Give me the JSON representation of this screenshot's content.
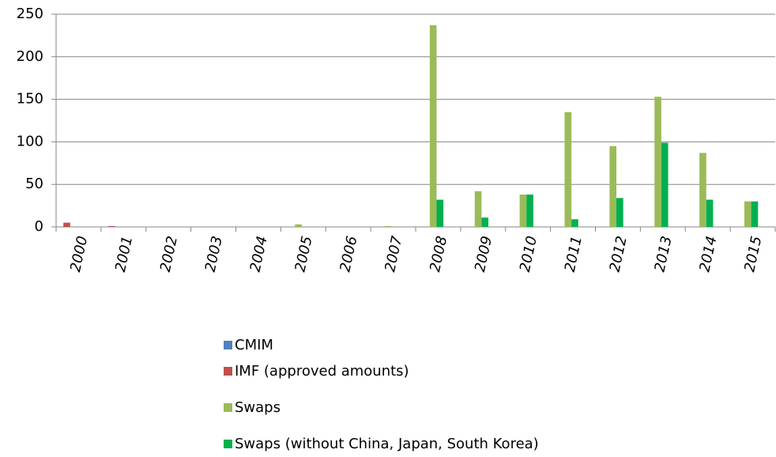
{
  "chart_data": {
    "type": "bar",
    "categories": [
      "2000",
      "2001",
      "2002",
      "2003",
      "2004",
      "2005",
      "2006",
      "2007",
      "2008",
      "2009",
      "2010",
      "2011",
      "2012",
      "2013",
      "2014",
      "2015"
    ],
    "series": [
      {
        "name": "CMIM",
        "color": "#4f81bd",
        "values": [
          0,
          0,
          0,
          0,
          0,
          0,
          0,
          0,
          0,
          0,
          0,
          0,
          0,
          0,
          0,
          0
        ]
      },
      {
        "name": "IMF (approved amounts)",
        "color": "#c0504d",
        "values": [
          5,
          1,
          0,
          0,
          0,
          0,
          0,
          0,
          0,
          0,
          0,
          0,
          0,
          0,
          0,
          0
        ]
      },
      {
        "name": "Swaps",
        "color": "#9bbb59",
        "values": [
          0,
          0,
          0,
          0,
          0,
          3,
          0,
          1,
          237,
          42,
          38,
          135,
          95,
          153,
          87,
          30
        ]
      },
      {
        "name": "Swaps (without China, Japan, South Korea)",
        "color": "#00b050",
        "values": [
          0,
          0,
          0,
          0,
          0,
          0,
          0,
          0,
          32,
          11,
          38,
          9,
          34,
          99,
          32,
          30
        ]
      }
    ],
    "ylim": [
      0,
      250
    ],
    "yticks": [
      0,
      50,
      100,
      150,
      200,
      250
    ],
    "grid": true,
    "legend": "bottom"
  }
}
